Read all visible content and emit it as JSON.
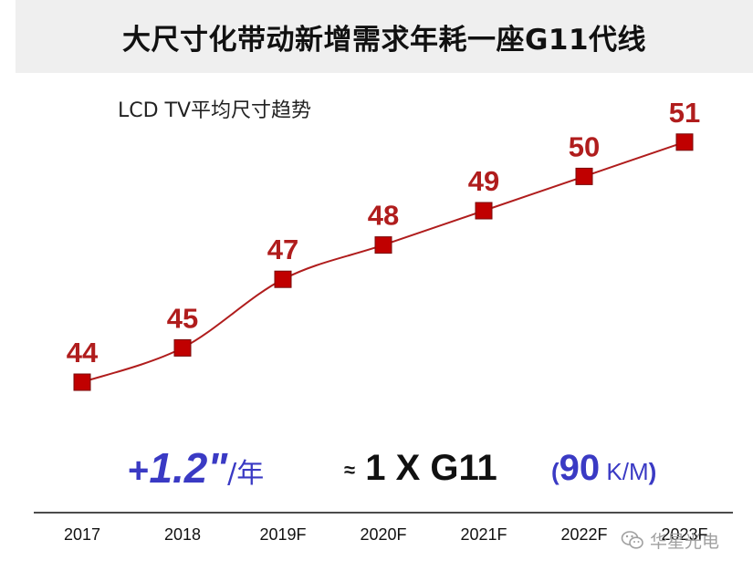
{
  "title": "大尺寸化带动新增需求年耗一座G11代线",
  "chart_data": {
    "type": "line",
    "title": "LCD TV平均尺寸趋势",
    "categories": [
      "2017",
      "2018",
      "2019F",
      "2020F",
      "2021F",
      "2022F",
      "2023F"
    ],
    "values": [
      44,
      45,
      47,
      48,
      49,
      50,
      51
    ],
    "line_color": "#b01d1d",
    "marker_color": "#c00000",
    "label_color": "#b01d1d",
    "grid": false,
    "xlabel": "",
    "ylabel": ""
  },
  "annotations": {
    "growth_sign": "+",
    "growth_value": "1.2",
    "growth_symbol": "\"",
    "growth_unit": "/年",
    "approx": "≈",
    "g11_text": "1 X G11",
    "capacity_open": "(",
    "capacity_value": "90",
    "capacity_unit": " K/M",
    "capacity_close": ")"
  },
  "watermark": {
    "text": "华星光电",
    "icon": "wechat-icon"
  },
  "colors": {
    "title_bar_bg": "#efefef",
    "accent_blue": "#3a3ac4",
    "watermark": "#a0a0a0"
  }
}
